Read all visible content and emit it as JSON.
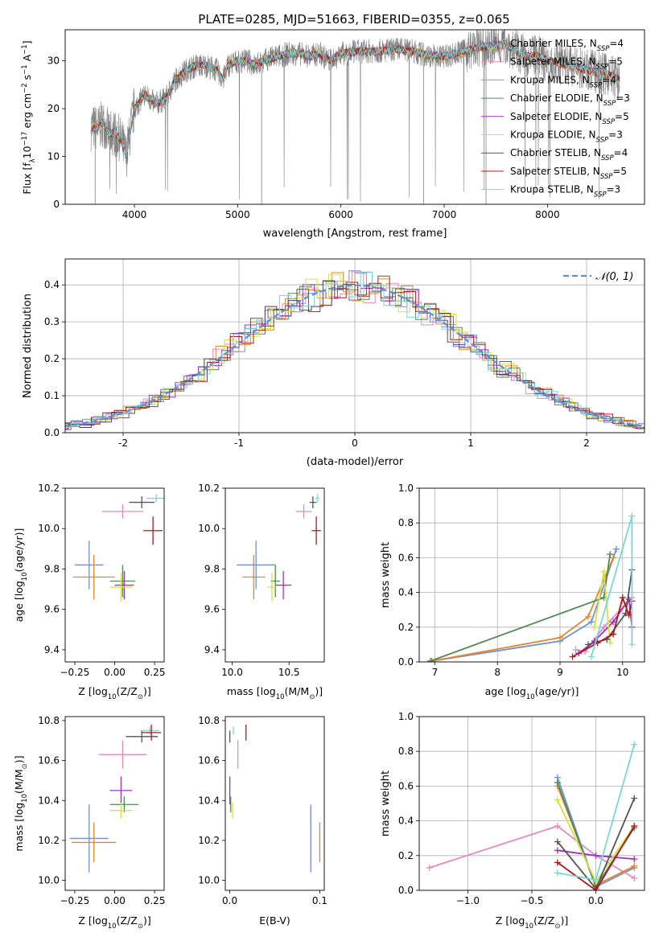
{
  "figure": {
    "title": "PLATE=0285, MJD=51663, FIBERID=0355, z=0.065"
  },
  "colors": {
    "Chabrier MILES": "#6f8fd8",
    "Salpeter MILES": "#e58ac0",
    "Kroupa MILES": "#e6862a",
    "Chabrier ELODIE": "#4f8a55",
    "Salpeter ELODIE": "#9b33c0",
    "Kroupa ELODIE": "#d5e040",
    "Chabrier STELIB": "#555555",
    "Salpeter STELIB": "#b0181c",
    "Kroupa STELIB": "#79d6dc",
    "gauss": "#5b8fd8",
    "spectrum": "#808080"
  },
  "chart_data": [
    {
      "id": "spectrum",
      "type": "line",
      "xlabel": "wavelength [Angstrom, rest frame]",
      "ylabel_parts": [
        "Flux [f",
        "λ",
        "10",
        "−17",
        " erg cm",
        "−2",
        " s",
        "−1",
        " A",
        "−1",
        "]"
      ],
      "xlim": [
        3330,
        8940
      ],
      "ylim": [
        0,
        36.5
      ],
      "xticks": [
        4000,
        5000,
        6000,
        7000,
        8000
      ],
      "yticks": [
        0,
        10,
        20,
        30
      ],
      "continuum": [
        [
          3580,
          16
        ],
        [
          3650,
          16
        ],
        [
          3700,
          17
        ],
        [
          3750,
          15
        ],
        [
          3800,
          15
        ],
        [
          3850,
          14
        ],
        [
          3880,
          13
        ],
        [
          3920,
          10
        ],
        [
          3950,
          14
        ],
        [
          4000,
          20
        ],
        [
          4100,
          23
        ],
        [
          4200,
          21
        ],
        [
          4300,
          22
        ],
        [
          4400,
          26
        ],
        [
          4500,
          28
        ],
        [
          4600,
          29
        ],
        [
          4700,
          29
        ],
        [
          4800,
          28
        ],
        [
          4860,
          26
        ],
        [
          4900,
          29
        ],
        [
          5000,
          30
        ],
        [
          5100,
          30
        ],
        [
          5170,
          29
        ],
        [
          5250,
          30
        ],
        [
          5400,
          31
        ],
        [
          5500,
          31.5
        ],
        [
          5600,
          31.5
        ],
        [
          5700,
          31
        ],
        [
          5800,
          31.5
        ],
        [
          5890,
          30
        ],
        [
          6000,
          31.5
        ],
        [
          6200,
          32
        ],
        [
          6400,
          32
        ],
        [
          6563,
          32.5
        ],
        [
          6700,
          32
        ],
        [
          6850,
          31
        ],
        [
          7000,
          31
        ],
        [
          7200,
          32
        ],
        [
          7400,
          33
        ],
        [
          7600,
          33.5
        ],
        [
          7700,
          32
        ],
        [
          7800,
          31
        ],
        [
          7900,
          31
        ],
        [
          8000,
          30
        ],
        [
          8200,
          29
        ],
        [
          8400,
          28
        ],
        [
          8600,
          27
        ],
        [
          8700,
          26
        ]
      ],
      "legend": [
        {
          "label_base": "Chabrier MILES, N",
          "label_sub": "SSP",
          "label_tail": "=4"
        },
        {
          "label_base": "Salpeter MILES, N",
          "label_sub": "SSP",
          "label_tail": "=5"
        },
        {
          "label_base": "Kroupa MILES, N",
          "label_sub": "SSP",
          "label_tail": "=4"
        },
        {
          "label_base": "Chabrier ELODIE, N",
          "label_sub": "SSP",
          "label_tail": "=3"
        },
        {
          "label_base": "Salpeter ELODIE, N",
          "label_sub": "SSP",
          "label_tail": "=5"
        },
        {
          "label_base": "Kroupa ELODIE, N",
          "label_sub": "SSP",
          "label_tail": "=3"
        },
        {
          "label_base": "Chabrier STELIB, N",
          "label_sub": "SSP",
          "label_tail": "=4"
        },
        {
          "label_base": "Salpeter STELIB, N",
          "label_sub": "SSP",
          "label_tail": "=5"
        },
        {
          "label_base": "Kroupa STELIB, N",
          "label_sub": "SSP",
          "label_tail": "=3"
        }
      ]
    },
    {
      "id": "residuals",
      "type": "histogram",
      "xlabel": "(data-model)/error",
      "ylabel": "Normed distribution",
      "xlim": [
        -2.5,
        2.5
      ],
      "ylim": [
        0,
        0.47
      ],
      "xticks": [
        -2,
        -1,
        0,
        1,
        2
      ],
      "yticks": [
        0.0,
        0.1,
        0.2,
        0.3,
        0.4
      ],
      "grid": true,
      "legend_label": "𝒩(0, 1)",
      "legend_position": "top-right"
    },
    {
      "id": "age_vs_Z",
      "type": "errorbar",
      "xlabel_parts": [
        "Z [log",
        "10",
        "(Z/Z",
        "⊙",
        ")]"
      ],
      "ylabel_parts": [
        "age  [log",
        "10",
        "(age/yr)]"
      ],
      "xlim": [
        -0.31,
        0.31
      ],
      "ylim": [
        9.34,
        10.2
      ],
      "xticks": [
        -0.25,
        0.0,
        0.25
      ],
      "xtick_labels": [
        "−0.25",
        "0.00",
        "0.25"
      ],
      "yticks": [
        9.4,
        9.6,
        9.8,
        10.0,
        10.2
      ],
      "points": [
        {
          "model": "Chabrier MILES",
          "x": -0.16,
          "xerr": 0.09,
          "y": 9.82,
          "yerr": 0.12
        },
        {
          "model": "Kroupa MILES",
          "x": -0.13,
          "xerr": 0.13,
          "y": 9.76,
          "yerr": 0.11
        },
        {
          "model": "Chabrier ELODIE",
          "x": 0.05,
          "xerr": 0.08,
          "y": 9.74,
          "yerr": 0.08
        },
        {
          "model": "Salpeter ELODIE",
          "x": 0.06,
          "xerr": 0.06,
          "y": 9.72,
          "yerr": 0.07
        },
        {
          "model": "Kroupa ELODIE",
          "x": 0.04,
          "xerr": 0.07,
          "y": 9.71,
          "yerr": 0.07
        },
        {
          "model": "Salpeter MILES",
          "x": 0.05,
          "xerr": 0.13,
          "y": 10.085,
          "yerr": 0.035
        },
        {
          "model": "Chabrier STELIB",
          "x": 0.17,
          "xerr": 0.08,
          "y": 10.13,
          "yerr": 0.03
        },
        {
          "model": "Kroupa STELIB",
          "x": 0.26,
          "xerr": 0.06,
          "y": 10.15,
          "yerr": 0.02
        },
        {
          "model": "Salpeter STELIB",
          "x": 0.24,
          "xerr": 0.06,
          "y": 9.99,
          "yerr": 0.07
        }
      ]
    },
    {
      "id": "age_vs_mass",
      "type": "errorbar",
      "xlabel_parts": [
        "mass [log",
        "10",
        "(M/M",
        "⊙",
        ")]"
      ],
      "xlim": [
        9.94,
        10.81
      ],
      "ylim": [
        9.34,
        10.2
      ],
      "xticks": [
        10.0,
        10.5
      ],
      "xtick_labels": [
        "10.0",
        "10.5"
      ],
      "yticks": [
        9.4,
        9.6,
        9.8,
        10.0,
        10.2
      ],
      "points": [
        {
          "model": "Chabrier MILES",
          "x": 10.21,
          "xerr": 0.17,
          "y": 9.82,
          "yerr": 0.12
        },
        {
          "model": "Kroupa MILES",
          "x": 10.19,
          "xerr": 0.1,
          "y": 9.76,
          "yerr": 0.11
        },
        {
          "model": "Chabrier ELODIE",
          "x": 10.38,
          "xerr": 0.04,
          "y": 9.74,
          "yerr": 0.08
        },
        {
          "model": "Salpeter ELODIE",
          "x": 10.45,
          "xerr": 0.07,
          "y": 9.72,
          "yerr": 0.07
        },
        {
          "model": "Kroupa ELODIE",
          "x": 10.35,
          "xerr": 0.04,
          "y": 9.71,
          "yerr": 0.07
        },
        {
          "model": "Salpeter MILES",
          "x": 10.63,
          "xerr": 0.07,
          "y": 10.085,
          "yerr": 0.035
        },
        {
          "model": "Chabrier STELIB",
          "x": 10.71,
          "xerr": 0.03,
          "y": 10.13,
          "yerr": 0.03
        },
        {
          "model": "Kroupa STELIB",
          "x": 10.75,
          "xerr": 0.02,
          "y": 10.15,
          "yerr": 0.02
        },
        {
          "model": "Salpeter STELIB",
          "x": 10.74,
          "xerr": 0.04,
          "y": 9.99,
          "yerr": 0.07
        }
      ]
    },
    {
      "id": "mass_weight_vs_age",
      "type": "line",
      "xlabel_parts": [
        "age  [log",
        "10",
        "(age/yr)]"
      ],
      "ylabel": "mass weight",
      "xlim": [
        6.75,
        10.35
      ],
      "ylim": [
        0,
        1.0
      ],
      "xticks": [
        7,
        8,
        9,
        10
      ],
      "yticks": [
        0.0,
        0.2,
        0.4,
        0.6,
        0.8,
        1.0
      ],
      "grid": true,
      "series": [
        {
          "model": "Chabrier MILES",
          "x": [
            6.95,
            9.0,
            9.5,
            9.9
          ],
          "y": [
            0.005,
            0.12,
            0.23,
            0.65
          ]
        },
        {
          "model": "Kroupa MILES",
          "x": [
            6.95,
            9.0,
            9.45,
            9.85
          ],
          "y": [
            0.005,
            0.14,
            0.26,
            0.6
          ]
        },
        {
          "model": "Chabrier ELODIE",
          "x": [
            6.93,
            9.7,
            9.8
          ],
          "y": [
            0.005,
            0.37,
            0.62
          ]
        },
        {
          "model": "Salpeter MILES",
          "x": [
            9.25,
            9.4,
            9.7,
            10.15
          ],
          "y": [
            0.07,
            0.06,
            0.2,
            0.37
          ]
        },
        {
          "model": "Salpeter ELODIE",
          "x": [
            9.3,
            9.55,
            9.85,
            10.1,
            10.15
          ],
          "y": [
            0.05,
            0.12,
            0.23,
            0.36,
            0.2
          ]
        },
        {
          "model": "Kroupa ELODIE",
          "x": [
            9.55,
            9.7,
            9.8
          ],
          "y": [
            0.2,
            0.52,
            0.11
          ]
        },
        {
          "model": "Chabrier STELIB",
          "x": [
            9.45,
            9.75,
            10.05,
            10.15
          ],
          "y": [
            0.1,
            0.13,
            0.28,
            0.53
          ]
        },
        {
          "model": "Salpeter STELIB",
          "x": [
            9.2,
            9.6,
            9.85,
            10.0,
            10.1,
            10.15
          ],
          "y": [
            0.03,
            0.11,
            0.16,
            0.37,
            0.27,
            0.35
          ]
        },
        {
          "model": "Kroupa STELIB",
          "x": [
            9.5,
            10.15,
            10.15
          ],
          "y": [
            0.03,
            0.84,
            0.1
          ]
        }
      ]
    },
    {
      "id": "mass_vs_Z",
      "type": "errorbar",
      "xlabel_parts": [
        "Z [log",
        "10",
        "(Z/Z",
        "⊙",
        ")]"
      ],
      "ylabel_parts": [
        "mass [log",
        "10",
        "(M/M",
        "⊙",
        ")]"
      ],
      "xlim": [
        -0.31,
        0.31
      ],
      "ylim": [
        9.95,
        10.82
      ],
      "xticks": [
        -0.25,
        0.0,
        0.25
      ],
      "xtick_labels": [
        "−0.25",
        "0.00",
        "0.25"
      ],
      "yticks": [
        10.0,
        10.2,
        10.4,
        10.6,
        10.8
      ],
      "points": [
        {
          "model": "Chabrier MILES",
          "x": -0.16,
          "xerr": 0.12,
          "y": 10.21,
          "yerr": 0.17
        },
        {
          "model": "Kroupa MILES",
          "x": -0.13,
          "xerr": 0.14,
          "y": 10.19,
          "yerr": 0.1
        },
        {
          "model": "Chabrier ELODIE",
          "x": 0.06,
          "xerr": 0.09,
          "y": 10.38,
          "yerr": 0.04
        },
        {
          "model": "Salpeter ELODIE",
          "x": 0.04,
          "xerr": 0.07,
          "y": 10.45,
          "yerr": 0.07
        },
        {
          "model": "Kroupa ELODIE",
          "x": 0.04,
          "xerr": 0.07,
          "y": 10.35,
          "yerr": 0.04
        },
        {
          "model": "Salpeter MILES",
          "x": 0.05,
          "xerr": 0.15,
          "y": 10.63,
          "yerr": 0.07
        },
        {
          "model": "Chabrier STELIB",
          "x": 0.17,
          "xerr": 0.1,
          "y": 10.72,
          "yerr": 0.03
        },
        {
          "model": "Kroupa STELIB",
          "x": 0.22,
          "xerr": 0.06,
          "y": 10.75,
          "yerr": 0.02
        },
        {
          "model": "Salpeter STELIB",
          "x": 0.23,
          "xerr": 0.06,
          "y": 10.74,
          "yerr": 0.04
        }
      ]
    },
    {
      "id": "mass_vs_EBV",
      "type": "errorbar",
      "xlabel": "E(B-V)",
      "xlim": [
        -0.005,
        0.105
      ],
      "ylim": [
        9.95,
        10.82
      ],
      "xticks": [
        0.0,
        0.1
      ],
      "xtick_labels": [
        "0.0",
        "0.1"
      ],
      "yticks": [
        10.0,
        10.2,
        10.4,
        10.6,
        10.8
      ],
      "points": [
        {
          "model": "Chabrier MILES",
          "x": 0.09,
          "y": 10.21,
          "yerr": 0.17
        },
        {
          "model": "Kroupa MILES",
          "x": 0.1,
          "y": 10.19,
          "yerr": 0.1
        },
        {
          "model": "Chabrier ELODIE",
          "x": 0.001,
          "y": 10.38,
          "yerr": 0.04
        },
        {
          "model": "Salpeter ELODIE",
          "x": 0.0,
          "y": 10.45,
          "yerr": 0.07
        },
        {
          "model": "Kroupa ELODIE",
          "x": 0.003,
          "y": 10.35,
          "yerr": 0.04
        },
        {
          "model": "Salpeter MILES",
          "x": 0.009,
          "y": 10.63,
          "yerr": 0.07
        },
        {
          "model": "Chabrier STELIB",
          "x": 0.0,
          "y": 10.72,
          "yerr": 0.03
        },
        {
          "model": "Kroupa STELIB",
          "x": 0.004,
          "y": 10.75,
          "yerr": 0.02
        },
        {
          "model": "Salpeter STELIB",
          "x": 0.018,
          "y": 10.74,
          "yerr": 0.04
        }
      ]
    },
    {
      "id": "mass_weight_vs_Z",
      "type": "line",
      "xlabel_parts": [
        "Z [log",
        "10",
        "(Z/Z",
        "⊙",
        ")]"
      ],
      "ylabel": "mass weight",
      "xlim": [
        -1.38,
        0.38
      ],
      "ylim": [
        0,
        1.0
      ],
      "xticks": [
        -1.0,
        -0.5,
        0.0
      ],
      "xtick_labels": [
        "−1.0",
        "−0.5",
        "0.0"
      ],
      "yticks": [
        0.0,
        0.2,
        0.4,
        0.6,
        0.8,
        1.0
      ],
      "grid": true,
      "series": [
        {
          "model": "Chabrier MILES",
          "x": [
            -0.3,
            0.0,
            0.3
          ],
          "y": [
            0.65,
            0.02,
            0.13
          ]
        },
        {
          "model": "Salpeter MILES",
          "x": [
            -1.3,
            -0.3,
            0.0,
            0.3
          ],
          "y": [
            0.13,
            0.37,
            0.2,
            0.07
          ]
        },
        {
          "model": "Kroupa MILES",
          "x": [
            -0.3,
            0.0,
            0.3
          ],
          "y": [
            0.6,
            0.03,
            0.14
          ]
        },
        {
          "model": "Chabrier ELODIE",
          "x": [
            -0.3,
            0.0,
            0.3
          ],
          "y": [
            0.62,
            0.02,
            0.36
          ]
        },
        {
          "model": "Salpeter ELODIE",
          "x": [
            -0.3,
            0.0,
            0.3
          ],
          "y": [
            0.23,
            0.2,
            0.18
          ]
        },
        {
          "model": "Kroupa ELODIE",
          "x": [
            -0.3,
            0.0,
            0.3
          ],
          "y": [
            0.52,
            0.05,
            0.37
          ]
        },
        {
          "model": "Chabrier STELIB",
          "x": [
            -0.3,
            0.0,
            0.3
          ],
          "y": [
            0.28,
            0.01,
            0.53
          ]
        },
        {
          "model": "Salpeter STELIB",
          "x": [
            -0.3,
            0.0,
            0.3
          ],
          "y": [
            0.16,
            0.0,
            0.37
          ]
        },
        {
          "model": "Kroupa STELIB",
          "x": [
            -0.3,
            0.0,
            0.3
          ],
          "y": [
            0.1,
            0.06,
            0.84
          ]
        }
      ]
    }
  ]
}
